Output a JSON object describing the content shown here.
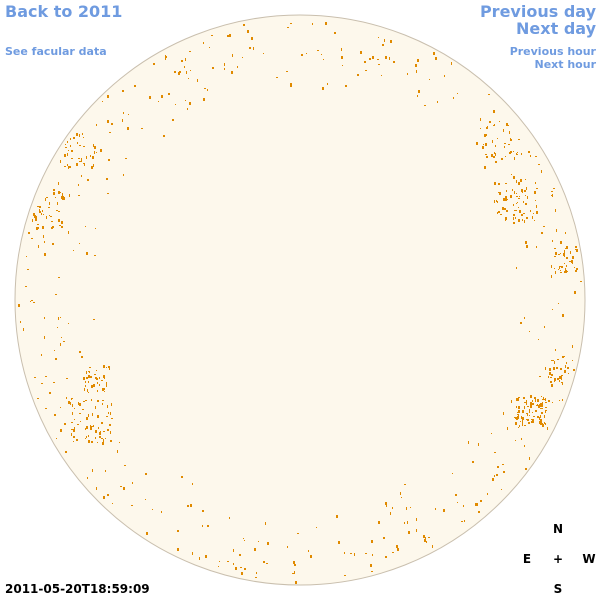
{
  "nav": {
    "back": "Back to 2011",
    "facular": "See facular data",
    "previous_day": "Previous day",
    "next_day": "Next day",
    "previous_hour": "Previous hour",
    "next_hour": "Next hour"
  },
  "timestamp": "2011-05-20T18:59:09",
  "compass": {
    "north": "N",
    "east": "E",
    "center": "+",
    "west": "W",
    "south": "S"
  }
}
